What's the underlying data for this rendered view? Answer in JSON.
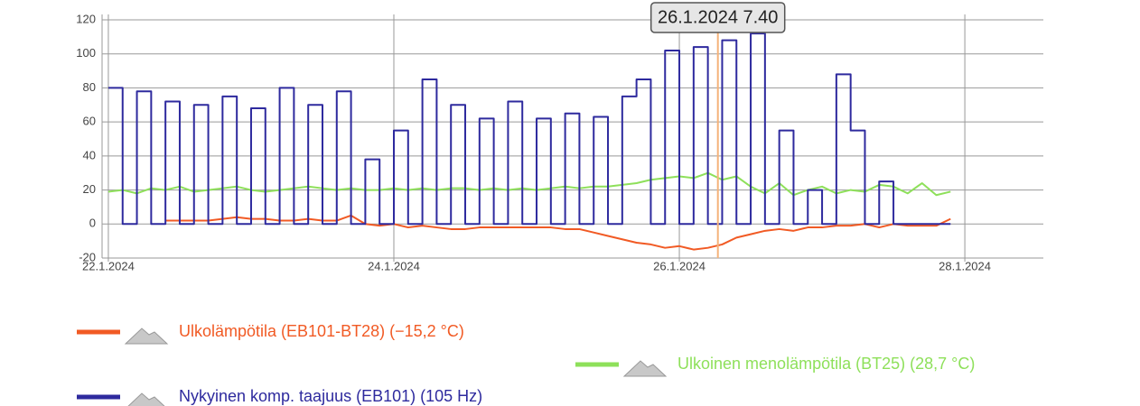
{
  "chart_data": {
    "type": "line",
    "x": [
      0,
      0.1,
      0.2,
      0.3,
      0.4,
      0.5,
      0.6,
      0.7,
      0.8,
      0.9,
      1,
      1.1,
      1.2,
      1.3,
      1.4,
      1.5,
      1.6,
      1.7,
      1.8,
      1.9,
      2,
      2.1,
      2.2,
      2.3,
      2.4,
      2.5,
      2.6,
      2.7,
      2.8,
      2.9,
      3,
      3.1,
      3.2,
      3.3,
      3.4,
      3.5,
      3.6,
      3.7,
      3.8,
      3.9,
      4,
      4.1,
      4.2,
      4.3,
      4.4,
      4.5,
      4.6,
      4.7,
      4.8,
      4.9,
      5,
      5.1,
      5.2,
      5.3,
      5.4,
      5.5,
      5.6,
      5.7,
      5.8,
      5.9
    ],
    "series": [
      {
        "name": "Ulkolämpötila (EB101-BT28) (−15,2 °C)",
        "color": "#f15a24",
        "step": false,
        "values": [
          null,
          null,
          null,
          null,
          2,
          2,
          2,
          2,
          3,
          4,
          3,
          3,
          2,
          2,
          3,
          2,
          2,
          5,
          0,
          -1,
          0,
          -2,
          -1,
          -2,
          -3,
          -3,
          -2,
          -2,
          -2,
          -2,
          -2,
          -2,
          -3,
          -3,
          -5,
          -7,
          -9,
          -11,
          -12,
          -14,
          -13,
          -15,
          -14,
          -12,
          -8,
          -6,
          -4,
          -3,
          -4,
          -2,
          -2,
          -1,
          -1,
          0,
          -2,
          0,
          -1,
          -1,
          -1,
          3
        ]
      },
      {
        "name": "Ulkoinen menolämpötila (BT25) (28,7 °C)",
        "color": "#8ee05a",
        "step": false,
        "values": [
          19,
          20,
          18,
          21,
          20,
          22,
          19,
          20,
          21,
          22,
          20,
          19,
          20,
          21,
          22,
          21,
          20,
          21,
          20,
          20,
          21,
          20,
          21,
          20,
          21,
          21,
          20,
          21,
          20,
          21,
          20,
          21,
          22,
          21,
          22,
          22,
          23,
          24,
          26,
          27,
          28,
          27,
          30,
          26,
          28,
          22,
          18,
          24,
          17,
          20,
          22,
          18,
          20,
          19,
          23,
          22,
          18,
          24,
          17,
          19
        ]
      },
      {
        "name": "Nykyinen komp. taajuus (EB101) (105 Hz)",
        "color": "#2e2a9e",
        "step": true,
        "values": [
          80,
          0,
          78,
          0,
          72,
          0,
          70,
          0,
          75,
          0,
          68,
          0,
          80,
          0,
          70,
          0,
          78,
          0,
          38,
          0,
          55,
          0,
          85,
          0,
          70,
          0,
          62,
          0,
          72,
          0,
          62,
          0,
          65,
          0,
          63,
          0,
          75,
          85,
          0,
          102,
          0,
          104,
          0,
          108,
          0,
          112,
          0,
          55,
          0,
          20,
          0,
          88,
          55,
          0,
          25,
          0,
          0,
          0,
          0,
          0
        ]
      }
    ],
    "xlim": [
      -0.044,
      6.55
    ],
    "xticks": [
      {
        "value": 0,
        "label": "22.1.2024"
      },
      {
        "value": 2,
        "label": "24.1.2024"
      },
      {
        "value": 4,
        "label": "26.1.2024"
      },
      {
        "value": 6,
        "label": "28.1.2024"
      }
    ],
    "ylim": [
      -20,
      120
    ],
    "yticks": [
      -20,
      0,
      20,
      40,
      60,
      80,
      100,
      120
    ],
    "grid": true,
    "cursor": {
      "x": 4.27,
      "label": "26.1.2024 7.40"
    }
  }
}
